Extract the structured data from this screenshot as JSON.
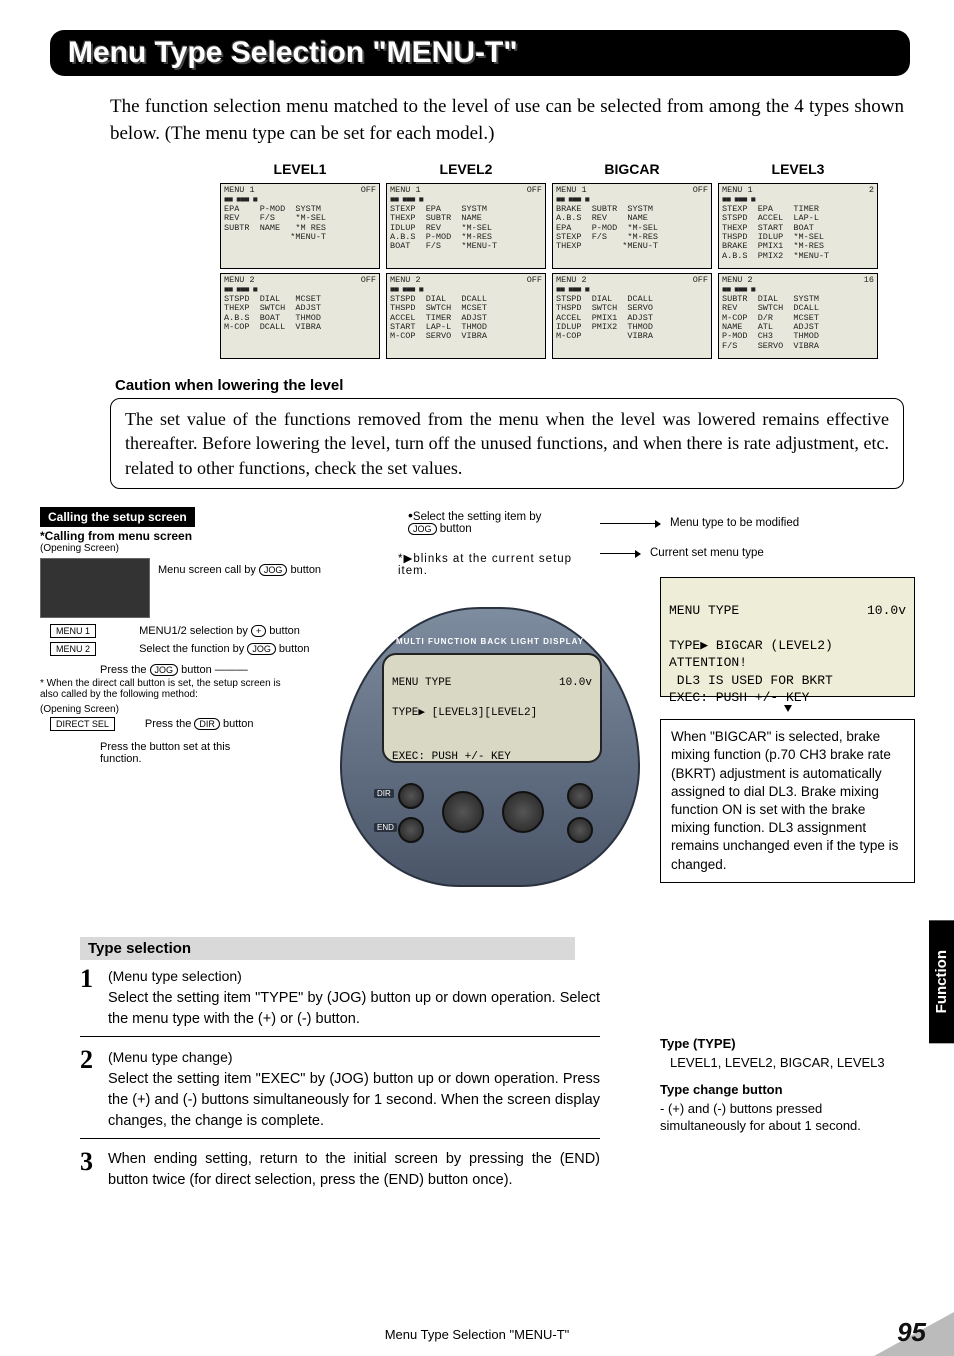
{
  "page": {
    "title": "Menu Type Selection  \"MENU-T\"",
    "intro": "The function selection menu matched to the level of use can be selected from among the 4 types shown below. (The menu type can be set for each model.)",
    "footer": "Menu Type Selection  \"MENU-T\"",
    "number": "95",
    "side_tab": "Function"
  },
  "lcd_headers": [
    "LEVEL1",
    "LEVEL2",
    "BIGCAR",
    "LEVEL3"
  ],
  "lcds": {
    "l1m1": {
      "title": "MENU 1",
      "mode": "OFF",
      "lines": [
        "EPA    P-MOD  SYSTM",
        "REV    F/S    *M-SEL",
        "SUBTR  NAME   *M RES",
        "             *MENU-T"
      ]
    },
    "l1m2": {
      "title": "MENU 2",
      "mode": "OFF",
      "lines": [
        "STSPD  DIAL   MCSET",
        "THEXP  SWTCH  ADJST",
        "A.B.S  BOAT   THMOD",
        "M-COP  DCALL  VIBRA"
      ]
    },
    "l2m1": {
      "title": "MENU 1",
      "mode": "OFF",
      "lines": [
        "STEXP  EPA    SYSTM",
        "THEXP  SUBTR  NAME",
        "IDLUP  REV    *M-SEL",
        "A.B.S  P-MOD  *M-RES",
        "BOAT   F/S    *MENU-T"
      ]
    },
    "l2m2": {
      "title": "MENU 2",
      "mode": "OFF",
      "lines": [
        "STSPD  DIAL   DCALL",
        "THSPD  SWTCH  MCSET",
        "ACCEL  TIMER  ADJST",
        "START  LAP-L  THMOD",
        "M-COP  SERVO  VIBRA"
      ]
    },
    "bcm1": {
      "title": "MENU 1",
      "mode": "OFF",
      "lines": [
        "BRAKE  SUBTR  SYSTM",
        "A.B.S  REV    NAME",
        "EPA    P-MOD  *M-SEL",
        "STEXP  F/S    *M-RES",
        "THEXP        *MENU-T"
      ]
    },
    "bcm2": {
      "title": "MENU 2",
      "mode": "OFF",
      "lines": [
        "STSPD  DIAL   DCALL",
        "THSPD  SWTCH  SERVO",
        "ACCEL  PMIX1  ADJST",
        "IDLUP  PMIX2  THMOD",
        "M-COP         VIBRA"
      ]
    },
    "l3m1": {
      "title": "MENU 1",
      "mode": "2",
      "lines": [
        "STEXP  EPA    TIMER",
        "STSPD  ACCEL  LAP-L",
        "THEXP  START  BOAT",
        "THSPD  IDLUP  *M-SEL",
        "BRAKE  PMIX1  *M-RES",
        "A.B.S  PMIX2  *MENU-T"
      ]
    },
    "l3m2": {
      "title": "MENU 2",
      "mode": "16",
      "lines": [
        "SUBTR  DIAL   SYSTM",
        "REV    SWTCH  DCALL",
        "M-COP  D/R    MCSET",
        "NAME   ATL    ADJST",
        "P-MOD  CH3    THMOD",
        "F/S    SERVO  VIBRA"
      ]
    }
  },
  "caution": {
    "head": "Caution when lowering the level",
    "body": "The set value of the functions removed from the menu when the level was lowered remains effective thereafter. Before lowering the level, turn off the unused functions, and when there is rate adjustment, etc. related to other functions, check the set values."
  },
  "calling": {
    "box": "Calling the setup screen",
    "head": "*Calling from menu screen",
    "opening": "(Opening Screen)",
    "menu_call": "Menu screen call by",
    "menu12": "MENU1/2 selection by",
    "plus": "+",
    "sel_func": "Select the function by",
    "press_jog": "Press the",
    "direct_note": "* When the direct call button is set, the setup screen is also called by the following method:",
    "direct_sel": "DIRECT SEL",
    "press_dir": "Press the",
    "press_set": "Press the button set at this function.",
    "menu1_btn": "MENU 1",
    "menu2_btn": "MENU 2",
    "jog": "JOG",
    "dir": "DIR",
    "button_word": "button"
  },
  "device": {
    "strip": "MULTI FUNCTION BACK LIGHT DISPLAY",
    "title": "MENU TYPE",
    "volt": "10.0v",
    "line2": "TYPE▶ [LEVEL3][LEVEL2]",
    "line3": "EXEC: PUSH +/- KEY",
    "btn_dir": "DIR",
    "btn_end": "END"
  },
  "select_anno": {
    "a1": "Select the setting item by",
    "a1b": "button",
    "a2": "*▶blinks at the current setup item.",
    "a3": "Menu type to be modified",
    "a4": "Current set menu type"
  },
  "big_lcd": {
    "title": "MENU TYPE",
    "volt": "10.0v",
    "l2": "TYPE▶ BIGCAR (LEVEL2)",
    "l3a": "ATTENTION!",
    "l3b": " DL3 IS USED FOR BKRT",
    "l4": "EXEC: PUSH +/- KEY"
  },
  "note": "When \"BIGCAR\" is selected, brake mixing function (p.70 CH3 brake rate (BKRT) adjustment is automatically assigned to dial DL3. Brake mixing function ON is set with the brake mixing function. DL3 assignment remains unchanged even if the type is changed.",
  "type_selection_head": "Type selection",
  "steps": {
    "s1t": "(Menu type selection)",
    "s1b": "Select the setting item \"TYPE\" by (JOG) button up or down operation. Select the menu type with the (+) or (-) button.",
    "s2t": "(Menu type change)",
    "s2b": "Select the setting item \"EXEC\" by (JOG) button up or down operation. Press the (+) and (-) buttons simultaneously for 1 second. When the screen display changes, the change is complete.",
    "s3b": "When ending setting, return to the initial screen by pressing the (END) button twice (for direct selection, press the (END) button once)."
  },
  "right": {
    "h1": "Type (TYPE)",
    "b1": "LEVEL1, LEVEL2, BIGCAR, LEVEL3",
    "h2": "Type change button",
    "b2": "- (+) and (-) buttons pressed simultaneously for about 1 second."
  },
  "nums": {
    "n1": "1",
    "n2": "2",
    "n3": "3"
  }
}
